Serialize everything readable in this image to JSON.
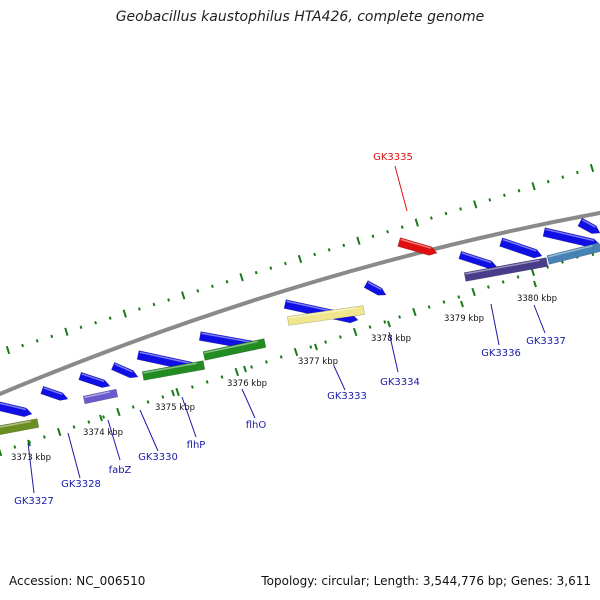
{
  "title": "Geobacillus kaustophilus HTA426, complete genome",
  "footer": {
    "accession": "Accession: NC_006510",
    "topology": "Topology: circular; Length: 3,544,776 bp; Genes: 3,611"
  },
  "colors": {
    "backbone": "#8a8a8a",
    "gene_blue": "#1010e6",
    "gene_red": "#e01010",
    "gene_label": "#1a1aa8",
    "highlight_label": "#e01010",
    "tick_green": "#1a7a1a",
    "tick_label": "#111111"
  },
  "scale_ticks": [
    {
      "label": "3373 kbp"
    },
    {
      "label": "3374 kbp"
    },
    {
      "label": "3375 kbp"
    },
    {
      "label": "3376 kbp"
    },
    {
      "label": "3377 kbp"
    },
    {
      "label": "3378 kbp"
    },
    {
      "label": "3379 kbp"
    },
    {
      "label": "3380 kbp"
    }
  ],
  "gene_labels": [
    {
      "name": "GK3327",
      "highlighted": false
    },
    {
      "name": "GK3328",
      "highlighted": false
    },
    {
      "name": "fabZ",
      "highlighted": false
    },
    {
      "name": "GK3330",
      "highlighted": false
    },
    {
      "name": "flhP",
      "highlighted": false
    },
    {
      "name": "flhO",
      "highlighted": false
    },
    {
      "name": "GK3333",
      "highlighted": false
    },
    {
      "name": "GK3334",
      "highlighted": false
    },
    {
      "name": "GK3335",
      "highlighted": true
    },
    {
      "name": "GK3336",
      "highlighted": false
    },
    {
      "name": "GK3337",
      "highlighted": false
    }
  ],
  "genes": [
    {
      "track": "forward",
      "color": "#1010e6"
    },
    {
      "track": "forward",
      "color": "#1010e6"
    },
    {
      "track": "forward",
      "color": "#1010e6"
    },
    {
      "track": "forward",
      "color": "#1010e6"
    },
    {
      "track": "forward",
      "color": "#1010e6"
    },
    {
      "track": "forward",
      "color": "#1010e6"
    },
    {
      "track": "forward",
      "color": "#1010e6"
    },
    {
      "track": "forward",
      "color": "#1010e6"
    },
    {
      "track": "forward",
      "color": "#e01010"
    },
    {
      "track": "forward",
      "color": "#1010e6"
    },
    {
      "track": "forward",
      "color": "#1010e6"
    },
    {
      "track": "forward",
      "color": "#1010e6"
    },
    {
      "track": "forward",
      "color": "#1010e6"
    },
    {
      "track": "cog",
      "color": "#6b8e23"
    },
    {
      "track": "cog",
      "color": "#6a5acd"
    },
    {
      "track": "cog",
      "color": "#228b22"
    },
    {
      "track": "cog",
      "color": "#228b22"
    },
    {
      "track": "cog",
      "color": "#f0e68c"
    },
    {
      "track": "cog",
      "color": "#483d8b"
    },
    {
      "track": "cog",
      "color": "#4682b4"
    }
  ]
}
